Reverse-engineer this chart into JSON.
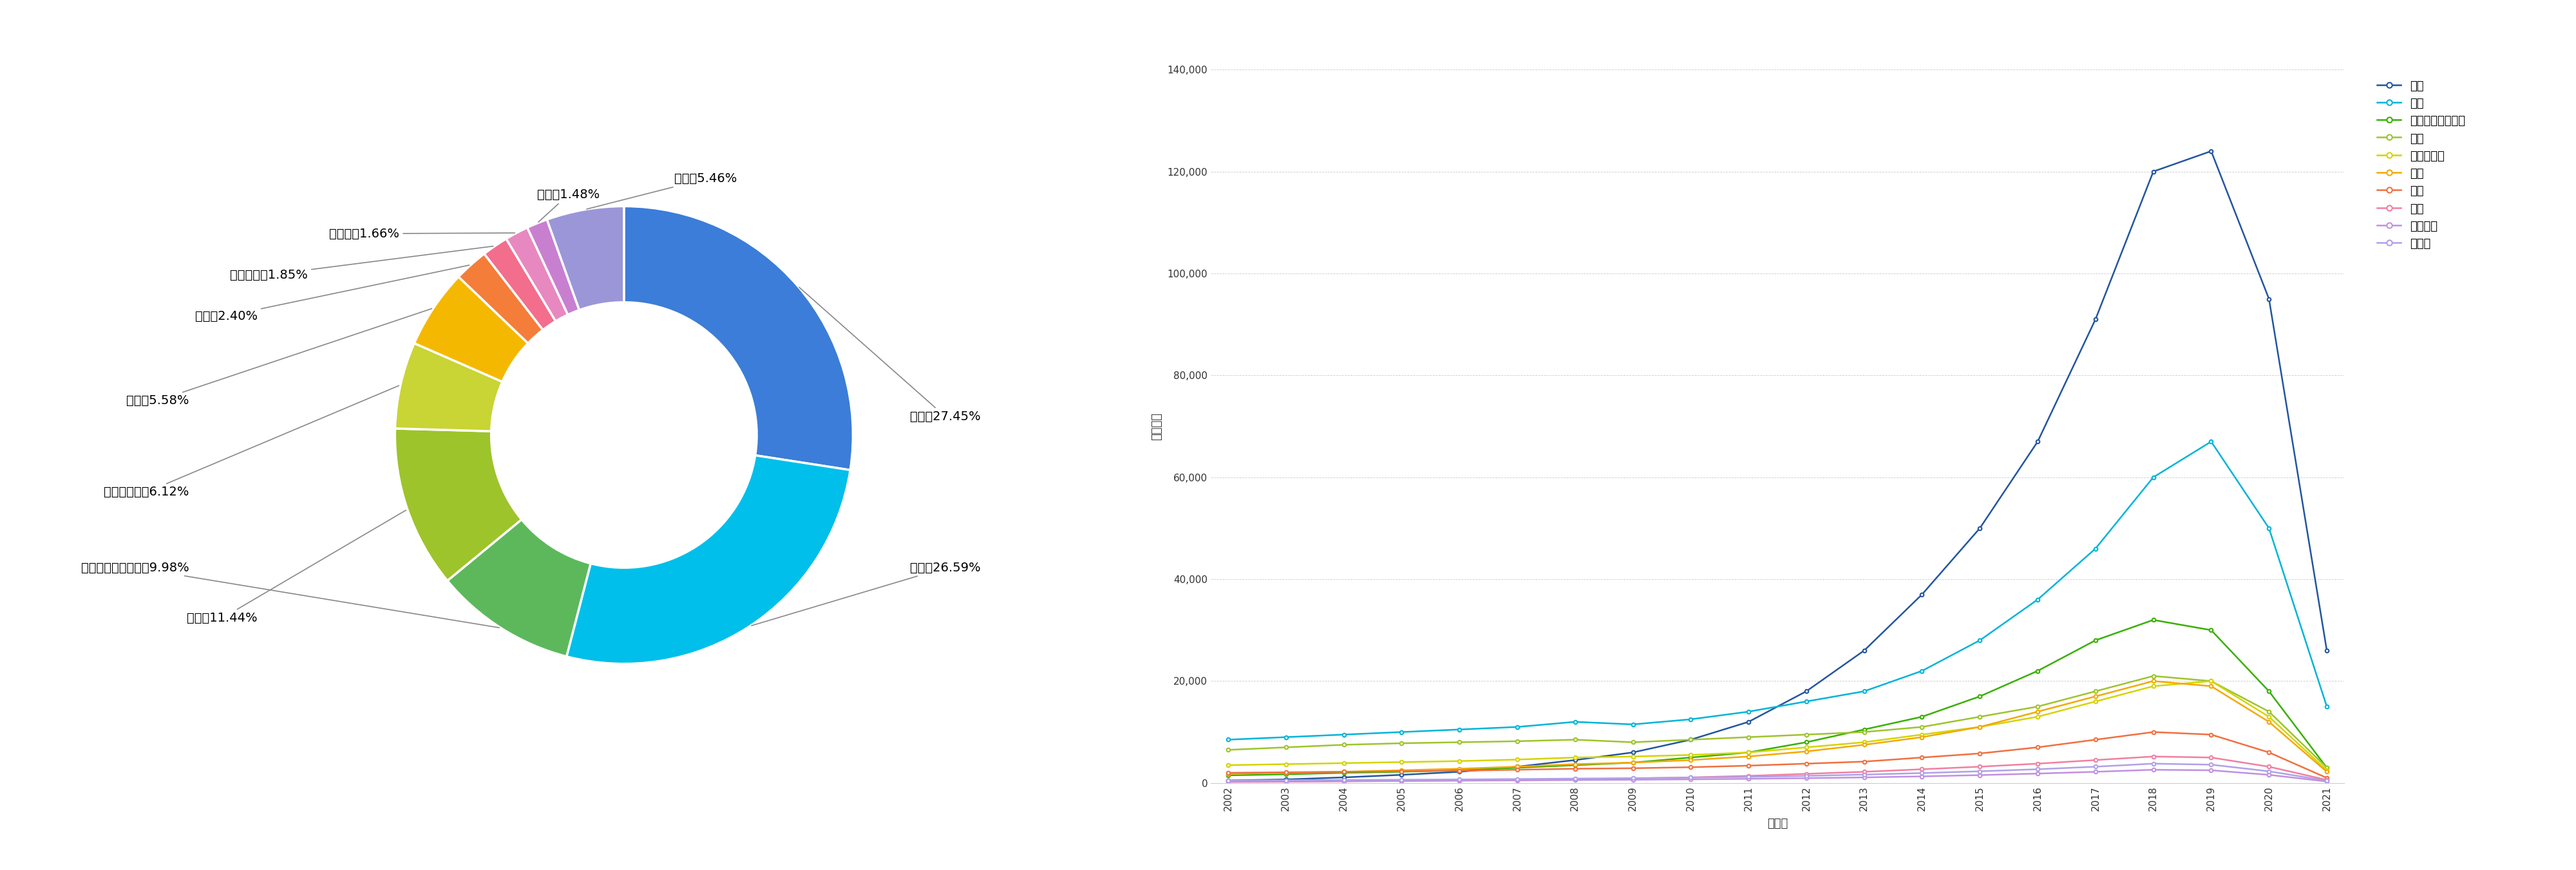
{
  "pie_labels": [
    "中国",
    "美国",
    "世界知识产权组织",
    "日本",
    "欧洲专利局",
    "韩国",
    "德国",
    "澳大利亚",
    "加拿大",
    "印度",
    "其他"
  ],
  "pie_values": [
    27.45,
    26.59,
    9.98,
    11.44,
    6.12,
    5.58,
    2.4,
    1.85,
    1.66,
    1.48,
    5.46
  ],
  "pie_colors": [
    "#3B7DD8",
    "#00BFEA",
    "#5DB85C",
    "#9DC42B",
    "#C9D435",
    "#F5B800",
    "#F47D3A",
    "#F26E8C",
    "#E888C0",
    "#C97FD0",
    "#9B96D8"
  ],
  "pie_label_texts": [
    "中国：27.45%",
    "美国：26.59%",
    "世界知识产权组织：9.98%",
    "日本：11.44%",
    "欧洲专利局：6.12%",
    "韩国：5.58%",
    "德国：2.40%",
    "澳大利亚：1.85%",
    "加拿大：1.66%",
    "印度：1.48%",
    "其他：5.46%"
  ],
  "years": [
    2002,
    2003,
    2004,
    2005,
    2006,
    2007,
    2008,
    2009,
    2010,
    2011,
    2012,
    2013,
    2014,
    2015,
    2016,
    2017,
    2018,
    2019,
    2020,
    2021
  ],
  "line_data": {
    "中国": [
      500,
      700,
      1100,
      1600,
      2200,
      3200,
      4500,
      6000,
      8500,
      12000,
      18000,
      26000,
      37000,
      50000,
      67000,
      91000,
      120000,
      124000,
      95000,
      26000
    ],
    "美国": [
      8500,
      9000,
      9500,
      10000,
      10500,
      11000,
      12000,
      11500,
      12500,
      14000,
      16000,
      18000,
      22000,
      28000,
      36000,
      46000,
      60000,
      67000,
      50000,
      15000
    ],
    "世界知识产权组织": [
      1500,
      1700,
      2000,
      2200,
      2500,
      3000,
      3500,
      4000,
      5000,
      6000,
      8000,
      10500,
      13000,
      17000,
      22000,
      28000,
      32000,
      30000,
      18000,
      3000
    ],
    "日本": [
      6500,
      7000,
      7500,
      7800,
      8000,
      8200,
      8500,
      8000,
      8500,
      9000,
      9500,
      10000,
      11000,
      13000,
      15000,
      18000,
      21000,
      20000,
      14000,
      3000
    ],
    "欧洲专利局": [
      3500,
      3700,
      3900,
      4100,
      4300,
      4600,
      5000,
      5200,
      5500,
      6000,
      7000,
      8000,
      9500,
      11000,
      13000,
      16000,
      19000,
      20000,
      13000,
      2500
    ],
    "韩国": [
      1800,
      2000,
      2200,
      2500,
      2800,
      3200,
      3700,
      4000,
      4500,
      5200,
      6200,
      7500,
      9000,
      11000,
      14000,
      17000,
      20000,
      19000,
      12000,
      2200
    ],
    "德国": [
      2000,
      2100,
      2200,
      2300,
      2400,
      2600,
      2800,
      2900,
      3100,
      3400,
      3800,
      4200,
      5000,
      5800,
      7000,
      8500,
      10000,
      9500,
      6000,
      1000
    ],
    "印度": [
      200,
      250,
      320,
      400,
      500,
      600,
      750,
      900,
      1100,
      1400,
      1800,
      2200,
      2700,
      3200,
      3800,
      4500,
      5200,
      5000,
      3200,
      600
    ],
    "澳大利亚": [
      300,
      330,
      370,
      410,
      450,
      510,
      580,
      640,
      720,
      820,
      950,
      1100,
      1300,
      1550,
      1850,
      2200,
      2600,
      2500,
      1600,
      300
    ],
    "加拿大": [
      500,
      540,
      590,
      640,
      700,
      780,
      870,
      950,
      1060,
      1200,
      1400,
      1650,
      1950,
      2300,
      2700,
      3200,
      3800,
      3600,
      2300,
      450
    ]
  },
  "line_colors": {
    "中国": "#2355A0",
    "美国": "#00B4D8",
    "世界知识产权组织": "#38B000",
    "日本": "#9DC42B",
    "欧洲专利局": "#D4D400",
    "韩国": "#F5A800",
    "德国": "#F07040",
    "印度": "#F080A0",
    "澳大利亚": "#C090E0",
    "加拿大": "#B0A0E8"
  },
  "ylabel": "专利数量",
  "xlabel": "申请年",
  "ylim": [
    0,
    140000
  ],
  "yticks": [
    0,
    20000,
    40000,
    60000,
    80000,
    100000,
    120000,
    140000
  ],
  "ytick_labels": [
    "0",
    "20,000",
    "40,000",
    "60,000",
    "80,000",
    "100,000",
    "120,000",
    "140,000"
  ],
  "background_color": "#FFFFFF"
}
